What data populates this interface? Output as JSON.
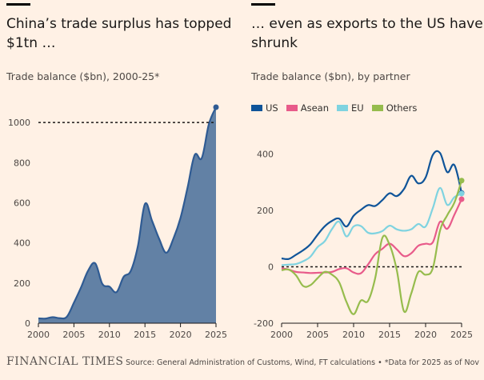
{
  "left": {
    "headline": "China’s trade surplus has topped $1tn …",
    "subtitle": "Trade balance ($bn), 2000-25*"
  },
  "right": {
    "headline": "… even as exports to the US have shrunk",
    "subtitle": "Trade balance ($bn), by partner"
  },
  "footer": {
    "logo": "FINANCIAL TIMES",
    "source": "Source: General Administration of Customs, Wind, FT calculations • *Data for 2025 as of Nov"
  },
  "chart_data": [
    {
      "type": "area",
      "title": "China’s trade surplus has topped $1tn …",
      "subtitle": "Trade balance ($bn), 2000-25*",
      "xlim": [
        2000,
        2025
      ],
      "ylim": [
        0,
        1100
      ],
      "xticks": [
        2000,
        2005,
        2010,
        2015,
        2020,
        2025
      ],
      "yticks": [
        0,
        200,
        400,
        600,
        800,
        1000
      ],
      "reference_line": 1000,
      "color": "#2f5b93",
      "fill": "#6281a5",
      "series": [
        {
          "x": [
            2000,
            2001,
            2002,
            2003,
            2004,
            2005,
            2006,
            2007,
            2008,
            2009,
            2010,
            2011,
            2012,
            2013,
            2014,
            2015,
            2016,
            2017,
            2018,
            2019,
            2020,
            2021,
            2022,
            2023,
            2024,
            2025
          ],
          "values": [
            24,
            23,
            30,
            25,
            32,
            102,
            178,
            262,
            298,
            196,
            182,
            155,
            231,
            260,
            383,
            594,
            510,
            420,
            351,
            421,
            524,
            676,
            838,
            823,
            992,
            1076
          ]
        }
      ]
    },
    {
      "type": "line",
      "title": "… even as exports to the US have shrunk",
      "subtitle": "Trade balance ($bn), by partner",
      "xlim": [
        2000,
        2025
      ],
      "ylim": [
        -200,
        450
      ],
      "xticks": [
        2000,
        2005,
        2010,
        2015,
        2020,
        2025
      ],
      "yticks": [
        -200,
        0,
        200,
        400
      ],
      "x": [
        2000,
        2001,
        2002,
        2003,
        2004,
        2005,
        2006,
        2007,
        2008,
        2009,
        2010,
        2011,
        2012,
        2013,
        2014,
        2015,
        2016,
        2017,
        2018,
        2019,
        2020,
        2021,
        2022,
        2023,
        2024,
        2025
      ],
      "series": [
        {
          "name": "US",
          "color": "#0f5499",
          "values": [
            30,
            28,
            43,
            59,
            80,
            114,
            144,
            163,
            171,
            143,
            181,
            202,
            219,
            216,
            237,
            261,
            251,
            276,
            323,
            296,
            317,
            397,
            404,
            336,
            361,
            262
          ]
        },
        {
          "name": "Asean",
          "color": "#e85b8a",
          "values": [
            -5,
            -10,
            -18,
            -20,
            -22,
            -21,
            -20,
            -18,
            -8,
            -5,
            -20,
            -23,
            8,
            45,
            64,
            82,
            62,
            38,
            48,
            75,
            82,
            87,
            160,
            135,
            185,
            240
          ]
        },
        {
          "name": "EU",
          "color": "#7fd3e0",
          "values": [
            6,
            8,
            10,
            20,
            36,
            70,
            91,
            134,
            160,
            108,
            143,
            145,
            121,
            119,
            127,
            146,
            133,
            128,
            133,
            152,
            143,
            208,
            280,
            220,
            247,
            260
          ]
        },
        {
          "name": "Others",
          "color": "#96bc4d",
          "values": [
            -12,
            -10,
            -30,
            -68,
            -65,
            -40,
            -18,
            -28,
            -55,
            -124,
            -168,
            -120,
            -121,
            -40,
            103,
            78,
            -12,
            -158,
            -95,
            -18,
            -28,
            -5,
            128,
            183,
            228,
            306
          ]
        }
      ]
    }
  ]
}
